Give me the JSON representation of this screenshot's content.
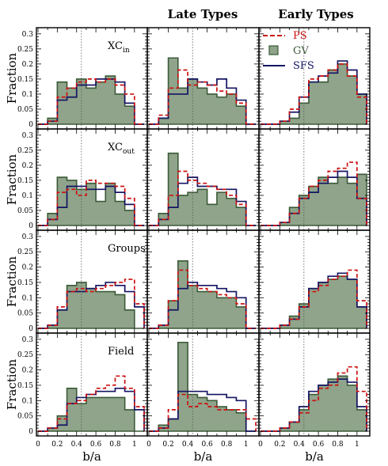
{
  "chart_data": {
    "type": "histogram-grid",
    "column_titles": [
      "",
      "Late Types",
      "Early Types"
    ],
    "row_labels": [
      "XC",
      "XC",
      "Groups",
      "Field"
    ],
    "row_label_subscripts": [
      "in",
      "out",
      "",
      ""
    ],
    "xlabel": "b/a",
    "ylabel": "Fraction",
    "xlim": [
      0,
      1.1
    ],
    "ylim": [
      0,
      0.31
    ],
    "x_ticks": [
      "0",
      "0.2",
      "0.4",
      "0.6",
      "0.8",
      "1"
    ],
    "y_ticks": [
      "0",
      "0.05",
      "0.1",
      "0.15",
      "0.2",
      "0.25",
      "0.3"
    ],
    "reference_line_x": 0.45,
    "bin_edges": [
      0,
      0.1,
      0.2,
      0.3,
      0.4,
      0.5,
      0.6,
      0.7,
      0.8,
      0.9,
      1.0,
      1.1
    ],
    "legend": [
      {
        "label": "PS",
        "style": "dashed-line",
        "color": "#cc1111"
      },
      {
        "label": "GV",
        "style": "filled-square",
        "color": "#8fa48a"
      },
      {
        "label": "SFS",
        "style": "solid-line",
        "color": "#151563"
      }
    ],
    "colors": {
      "PS": "#cc1111",
      "GV_fill": "#8fa48a",
      "GV_edge": "#3b5a38",
      "SFS": "#151563"
    },
    "panels": [
      [
        {
          "PS": [
            0,
            0.01,
            0.09,
            0.12,
            0.14,
            0.15,
            0.14,
            0.15,
            0.13,
            0.1,
            0
          ],
          "GV": [
            0,
            0.02,
            0.14,
            0.12,
            0.15,
            0.12,
            0.14,
            0.16,
            0.1,
            0.06,
            0
          ],
          "SFS": [
            0,
            0.01,
            0.08,
            0.09,
            0.13,
            0.13,
            0.15,
            0.15,
            0.14,
            0.07,
            0
          ]
        },
        {
          "PS": [
            0,
            0.03,
            0.12,
            0.18,
            0.13,
            0.14,
            0.13,
            0.11,
            0.1,
            0.07,
            0
          ],
          "GV": [
            0,
            0.02,
            0.22,
            0.12,
            0.15,
            0.12,
            0.1,
            0.09,
            0.1,
            0.06,
            0
          ],
          "SFS": [
            0,
            0.02,
            0.1,
            0.1,
            0.15,
            0.14,
            0.13,
            0.15,
            0.12,
            0.08,
            0
          ]
        },
        {
          "PS": [
            0,
            0,
            0.01,
            0.05,
            0.09,
            0.15,
            0.16,
            0.18,
            0.2,
            0.16,
            0.09
          ],
          "GV": [
            0,
            0,
            0.01,
            0.02,
            0.07,
            0.14,
            0.14,
            0.18,
            0.2,
            0.16,
            0.1
          ],
          "SFS": [
            0,
            0,
            0.01,
            0.04,
            0.09,
            0.14,
            0.16,
            0.17,
            0.21,
            0.18,
            0.1
          ]
        }
      ],
      [
        {
          "PS": [
            0,
            0.02,
            0.11,
            0.12,
            0.1,
            0.15,
            0.14,
            0.14,
            0.13,
            0.09,
            0
          ],
          "GV": [
            0,
            0.04,
            0.16,
            0.15,
            0.12,
            0.14,
            0.08,
            0.14,
            0.08,
            0.05,
            0
          ],
          "SFS": [
            0,
            0.02,
            0.06,
            0.13,
            0.13,
            0.12,
            0.12,
            0.13,
            0.11,
            0.07,
            0
          ]
        },
        {
          "PS": [
            0,
            0.02,
            0.1,
            0.18,
            0.15,
            0.14,
            0.13,
            0.12,
            0.1,
            0.07,
            0
          ],
          "GV": [
            0,
            0.04,
            0.24,
            0.1,
            0.11,
            0.12,
            0.07,
            0.11,
            0.09,
            0.06,
            0
          ],
          "SFS": [
            0,
            0.02,
            0.06,
            0.14,
            0.16,
            0.13,
            0.13,
            0.12,
            0.12,
            0.08,
            0
          ]
        },
        {
          "PS": [
            0,
            0,
            0.01,
            0.04,
            0.09,
            0.13,
            0.15,
            0.18,
            0.19,
            0.21,
            0.09
          ],
          "GV": [
            0,
            0,
            0.01,
            0.06,
            0.1,
            0.13,
            0.16,
            0.14,
            0.16,
            0.14,
            0.17
          ],
          "SFS": [
            0,
            0,
            0.01,
            0.04,
            0.09,
            0.11,
            0.14,
            0.16,
            0.18,
            0.16,
            0.09
          ]
        }
      ],
      [
        {
          "PS": [
            0,
            0.01,
            0.07,
            0.12,
            0.13,
            0.12,
            0.13,
            0.14,
            0.15,
            0.16,
            0.08
          ],
          "GV": [
            0,
            0.01,
            0.06,
            0.14,
            0.15,
            0.13,
            0.12,
            0.12,
            0.11,
            0.06,
            0
          ],
          "SFS": [
            0,
            0.01,
            0.06,
            0.12,
            0.12,
            0.13,
            0.14,
            0.15,
            0.14,
            0.12,
            0.07
          ]
        },
        {
          "PS": [
            0,
            0.01,
            0.09,
            0.19,
            0.14,
            0.13,
            0.12,
            0.11,
            0.1,
            0.08,
            0
          ],
          "GV": [
            0,
            0.01,
            0.09,
            0.22,
            0.14,
            0.12,
            0.12,
            0.1,
            0.1,
            0.07,
            0
          ],
          "SFS": [
            0,
            0.01,
            0.06,
            0.13,
            0.15,
            0.14,
            0.14,
            0.13,
            0.12,
            0.1,
            0
          ]
        },
        {
          "PS": [
            0,
            0,
            0.01,
            0.03,
            0.07,
            0.12,
            0.14,
            0.16,
            0.17,
            0.19,
            0.09
          ],
          "GV": [
            0,
            0,
            0.01,
            0.04,
            0.08,
            0.13,
            0.15,
            0.16,
            0.17,
            0.16,
            0.07
          ],
          "SFS": [
            0,
            0,
            0.01,
            0.03,
            0.07,
            0.13,
            0.15,
            0.17,
            0.18,
            0.16,
            0.07
          ]
        }
      ],
      [
        {
          "PS": [
            0,
            0.01,
            0.04,
            0.09,
            0.1,
            0.12,
            0.14,
            0.15,
            0.18,
            0.14,
            0.08
          ],
          "GV": [
            0,
            0.01,
            0.05,
            0.14,
            0.09,
            0.11,
            0.11,
            0.11,
            0.11,
            0.07,
            0
          ],
          "SFS": [
            0,
            0.01,
            0.02,
            0.09,
            0.11,
            0.12,
            0.13,
            0.13,
            0.14,
            0.13,
            0.07
          ]
        },
        {
          "PS": [
            0,
            0.01,
            0.07,
            0.12,
            0.08,
            0.09,
            0.08,
            0.07,
            0.07,
            0.07,
            0.04
          ],
          "GV": [
            0,
            0.02,
            0.04,
            0.29,
            0.12,
            0.11,
            0.1,
            0.08,
            0.07,
            0.06,
            0
          ],
          "SFS": [
            0,
            0.01,
            0.04,
            0.13,
            0.13,
            0.13,
            0.12,
            0.12,
            0.11,
            0.1,
            0
          ]
        },
        {
          "PS": [
            0,
            0,
            0.01,
            0.03,
            0.06,
            0.1,
            0.14,
            0.15,
            0.19,
            0.21,
            0.13
          ],
          "GV": [
            0,
            0,
            0.01,
            0.03,
            0.07,
            0.12,
            0.15,
            0.17,
            0.18,
            0.15,
            0.07
          ],
          "SFS": [
            0,
            0,
            0.01,
            0.03,
            0.08,
            0.13,
            0.15,
            0.16,
            0.17,
            0.16,
            0.08
          ]
        }
      ]
    ]
  }
}
